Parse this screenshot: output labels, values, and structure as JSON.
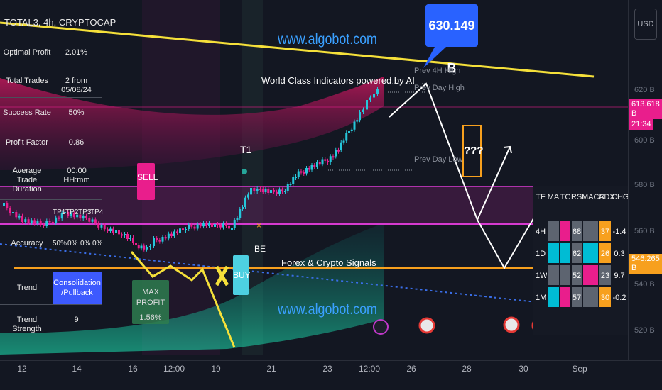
{
  "symbol_title": "TOTAL3, 4h, CRYPTOCAP",
  "currency_button": "USD",
  "watermarks": [
    "www.algobot.com",
    "www.algobot.com"
  ],
  "headline": "World Class Indicators powered by AI",
  "signals_text": "Forex & Crypto Signals",
  "price_callout": "630.149 B",
  "level_labels": {
    "prev_4h_high": "Prev 4H High",
    "prev_day_high": "Prev Day High",
    "prev_day_low": "Prev Day Low"
  },
  "question_box": "???",
  "markers": {
    "sell": "SELL",
    "buy": "BUY",
    "t1": "T1",
    "be": "BE",
    "max_profit_label": "MAX PROFIT",
    "max_profit_value": "1.56%"
  },
  "stats": [
    {
      "label": "Optimal Profit",
      "value": "2.01%"
    },
    {
      "label": "Total Trades",
      "value": "2 from 05/08/24"
    },
    {
      "label": "Success Rate",
      "value": "50%"
    },
    {
      "label": "Profit Factor",
      "value": "0.86"
    },
    {
      "label": "Average Trade Duration",
      "value": "00:00 HH:mm"
    }
  ],
  "tp_headers": [
    "TP1",
    "TP2",
    "TP3",
    "TP4"
  ],
  "accuracy": {
    "label": "Accuracy",
    "values": [
      "50%",
      "0%",
      "0%",
      "0%"
    ]
  },
  "trend": {
    "label": "Trend",
    "value": "Consolidation /Pullback"
  },
  "trend_strength": {
    "label": "Trend Strength",
    "value": "9"
  },
  "price_axis": [
    "620 B",
    "600 B",
    "580 B",
    "560 B",
    "540 B",
    "520 B"
  ],
  "price_tags": [
    {
      "text": "613.618 B",
      "color": "#e91e8c"
    },
    {
      "text": "21:34",
      "color": "#e91e8c"
    },
    {
      "text": "546.265 B",
      "color": "#f7a01e"
    }
  ],
  "time_axis": [
    "12",
    "14",
    "16",
    "12:00",
    "19",
    "21",
    "23",
    "12:00",
    "26",
    "28",
    "30",
    "Sep"
  ],
  "matrix": {
    "headers": [
      "TF",
      "MA",
      "TC",
      "RSI",
      "MACD",
      "ADX",
      "CHG"
    ],
    "rows": [
      {
        "tf": "4H",
        "rsi": "68",
        "adx": "37",
        "chg": "-1.4"
      },
      {
        "tf": "1D",
        "rsi": "62",
        "adx": "26",
        "chg": "0.3"
      },
      {
        "tf": "1W",
        "rsi": "52",
        "adx": "23",
        "chg": "9.7"
      },
      {
        "tf": "1M",
        "rsi": "57",
        "adx": "30",
        "chg": "-0.2"
      }
    ]
  },
  "colors": {
    "background": "#131722",
    "magenta": "#e91e8c",
    "yellow": "#f5e03a",
    "orange": "#f7a01e",
    "teal": "#26a69a",
    "cyan": "#00bcd4",
    "blue_callout": "#2962ff"
  }
}
